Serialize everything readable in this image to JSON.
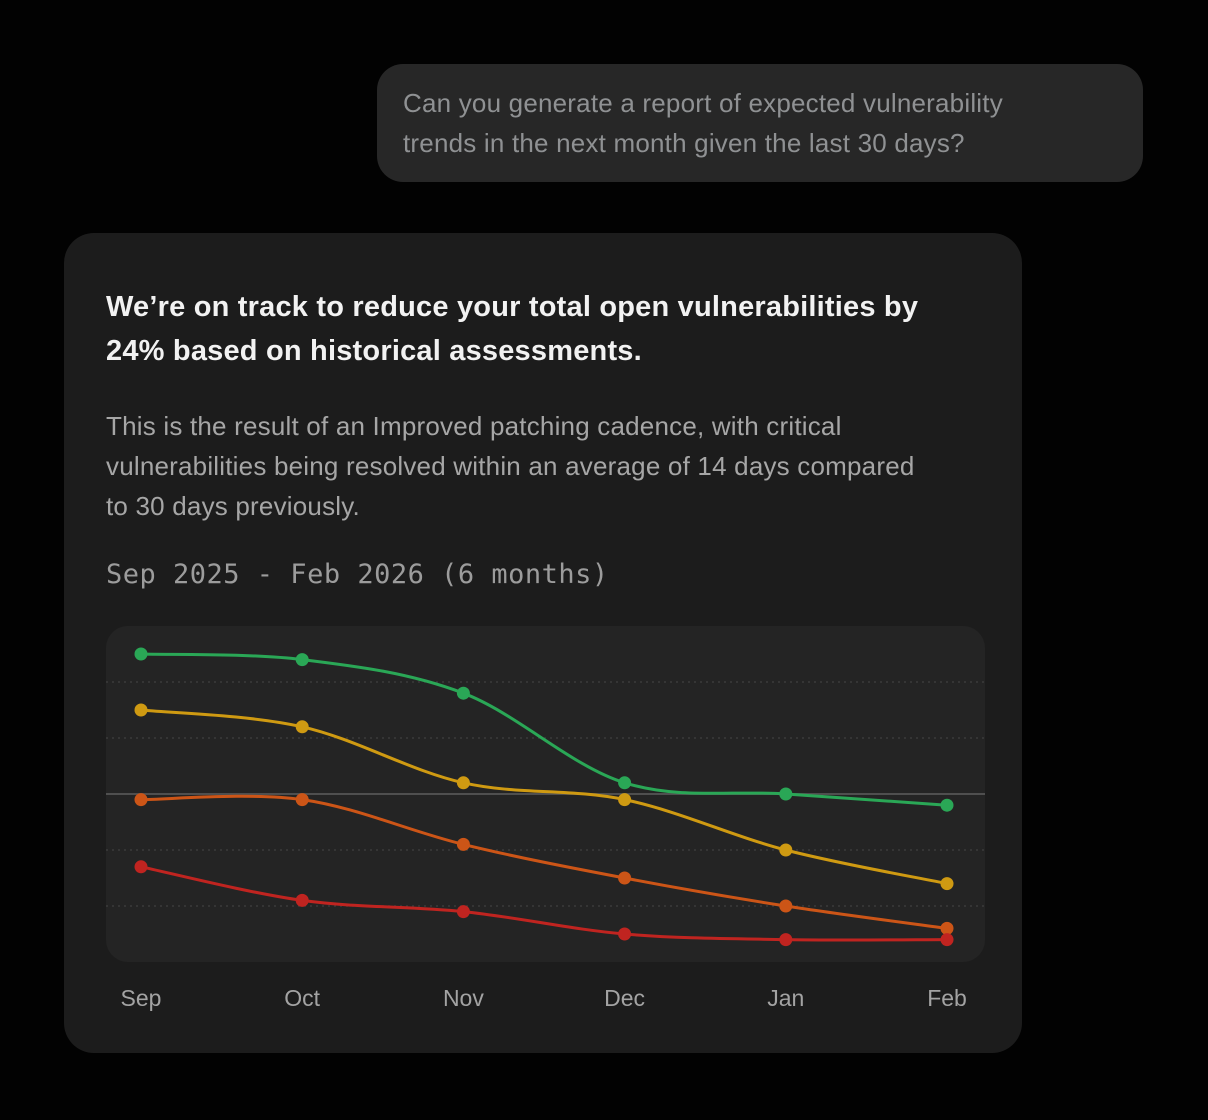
{
  "chat": {
    "user_message_lines": [
      "Can you generate a report of expected vulnerability",
      "trends in the next month given the last 30 days?"
    ]
  },
  "card": {
    "headline_lines": [
      "We’re on track to reduce your total open vulnerabilities by",
      "24% based on historical assessments."
    ],
    "body_lines": [
      "This is the result of an Improved patching cadence, with critical",
      "vulnerabilities being resolved within an average of 14 days compared",
      "to 30 days previously."
    ],
    "date_range": "Sep 2025 - Feb 2026 (6 months)"
  },
  "chart_data": {
    "type": "line",
    "title": "",
    "xlabel": "",
    "ylabel": "",
    "categories": [
      "Sep",
      "Oct",
      "Nov",
      "Dec",
      "Jan",
      "Feb"
    ],
    "series": [
      {
        "name": "green-series",
        "color": "#2aa756",
        "values": [
          55,
          54,
          48,
          32,
          30,
          28
        ]
      },
      {
        "name": "amber-series",
        "color": "#cf9a12",
        "values": [
          45,
          42,
          32,
          29,
          20,
          14
        ]
      },
      {
        "name": "orange-series",
        "color": "#cc5517",
        "values": [
          29,
          29,
          21,
          15,
          10,
          6
        ]
      },
      {
        "name": "red-series",
        "color": "#c02420",
        "values": [
          17,
          11,
          9,
          5,
          4,
          4
        ]
      }
    ],
    "ylim": [
      0,
      60
    ],
    "gridlines": [
      10,
      20,
      30,
      40,
      50
    ],
    "solid_gridline": 30,
    "grid": "horizontal-only",
    "legend": "none",
    "smooth": true,
    "point_markers": true
  },
  "colors": {
    "page_bg": "#020202",
    "bubble_bg": "#272727",
    "card_bg": "#1c1c1c",
    "panel_bg": "#242424",
    "grid_dashed": "#3b3b3b",
    "grid_solid": "#4f4f4f",
    "axis_label": "#a3a3a3"
  }
}
